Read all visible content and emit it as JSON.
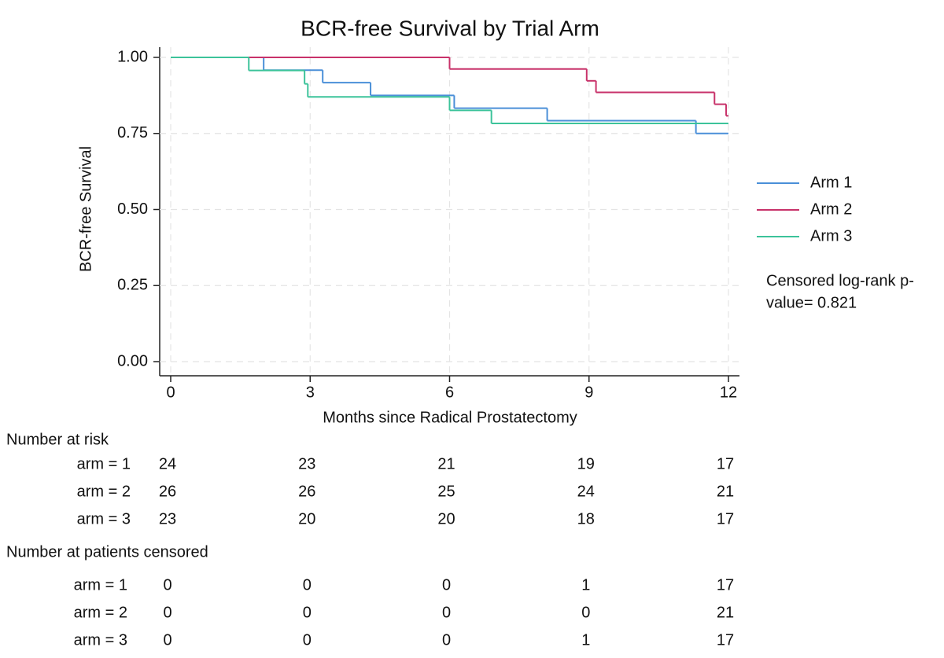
{
  "chart_data": {
    "type": "step",
    "title": "BCR-free Survival by Trial Arm",
    "xlabel": "Months since Radical Prostatectomy",
    "ylabel": "BCR-free Survival",
    "xlim": [
      0,
      12
    ],
    "ylim": [
      0,
      1
    ],
    "xticks": [
      0,
      3,
      6,
      9,
      12
    ],
    "yticks": [
      {
        "value": 0,
        "label": "0.00"
      },
      {
        "value": 0.25,
        "label": "0.25"
      },
      {
        "value": 0.5,
        "label": "0.50"
      },
      {
        "value": 0.75,
        "label": "0.75"
      },
      {
        "value": 1,
        "label": "1.00"
      }
    ],
    "grid": true,
    "legend": "right",
    "series": [
      {
        "name": "Arm 1",
        "color": "#4a8fd8",
        "x": [
          0,
          2.0,
          3.27,
          4.3,
          6.1,
          8.1,
          11.3
        ],
        "values": [
          1.0,
          0.958,
          0.917,
          0.875,
          0.833,
          0.792,
          0.75
        ]
      },
      {
        "name": "Arm 2",
        "color": "#c8326a",
        "x": [
          0,
          6.0,
          8.95,
          9.15,
          11.7,
          11.95
        ],
        "values": [
          1.0,
          0.962,
          0.923,
          0.885,
          0.846,
          0.808
        ]
      },
      {
        "name": "Arm 3",
        "color": "#3cc39a",
        "x": [
          0,
          1.68,
          2.88,
          2.95,
          6.0,
          6.9
        ],
        "values": [
          1.0,
          0.957,
          0.913,
          0.87,
          0.826,
          0.783
        ]
      }
    ],
    "annotation": [
      "Censored log-rank p-",
      "value= 0.821"
    ]
  },
  "risk_table": {
    "title": "Number at risk",
    "rows": [
      {
        "label": "arm = 1",
        "values": [
          24,
          23,
          21,
          19,
          17
        ]
      },
      {
        "label": "arm = 2",
        "values": [
          26,
          26,
          25,
          24,
          21
        ]
      },
      {
        "label": "arm = 3",
        "values": [
          23,
          20,
          20,
          18,
          17
        ]
      }
    ]
  },
  "censored_table": {
    "title": "Number at patients censored",
    "rows": [
      {
        "label": "arm = 1",
        "values": [
          0,
          0,
          0,
          1,
          17
        ]
      },
      {
        "label": "arm = 2",
        "values": [
          0,
          0,
          0,
          0,
          21
        ]
      },
      {
        "label": "arm = 3",
        "values": [
          0,
          0,
          0,
          1,
          17
        ]
      }
    ]
  }
}
